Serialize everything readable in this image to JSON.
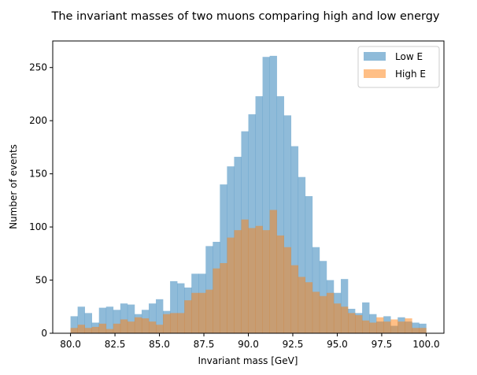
{
  "chart_data": {
    "type": "bar",
    "title": "The invariant masses of two muons comparing high and low energy",
    "xlabel": "Invariant mass [GeV]",
    "ylabel": "Number of events",
    "xlim": [
      79,
      101
    ],
    "ylim": [
      0,
      275
    ],
    "x_ticks": [
      80.0,
      82.5,
      85.0,
      87.5,
      90.0,
      92.5,
      95.0,
      97.5,
      100.0
    ],
    "x_tick_labels": [
      "80.0",
      "82.5",
      "85.0",
      "87.5",
      "90.0",
      "92.5",
      "95.0",
      "97.5",
      "100.0"
    ],
    "y_ticks": [
      0,
      50,
      100,
      150,
      200,
      250
    ],
    "y_tick_labels": [
      "0",
      "50",
      "100",
      "150",
      "200",
      "250"
    ],
    "bin_start": 80.0,
    "bin_width": 0.4,
    "grid": false,
    "legend_position": "top-right",
    "series": [
      {
        "name": "Low E",
        "color": "#1f77b4",
        "opacity": 0.5,
        "values": [
          16,
          25,
          19,
          10,
          24,
          25,
          22,
          28,
          27,
          18,
          22,
          28,
          32,
          21,
          49,
          47,
          43,
          56,
          56,
          82,
          86,
          140,
          157,
          166,
          190,
          206,
          223,
          260,
          261,
          223,
          205,
          176,
          147,
          129,
          81,
          68,
          50,
          38,
          51,
          23,
          19,
          29,
          18,
          11,
          16,
          7,
          15,
          11,
          10,
          9
        ]
      },
      {
        "name": "High E",
        "color": "#ff7f0e",
        "opacity": 0.5,
        "values": [
          5,
          8,
          5,
          6,
          9,
          4,
          9,
          13,
          11,
          15,
          14,
          11,
          8,
          18,
          19,
          19,
          31,
          38,
          38,
          41,
          61,
          66,
          90,
          97,
          107,
          99,
          101,
          97,
          116,
          92,
          81,
          64,
          53,
          48,
          39,
          35,
          38,
          28,
          25,
          19,
          17,
          12,
          10,
          15,
          11,
          13,
          11,
          14,
          5,
          5
        ]
      }
    ]
  }
}
